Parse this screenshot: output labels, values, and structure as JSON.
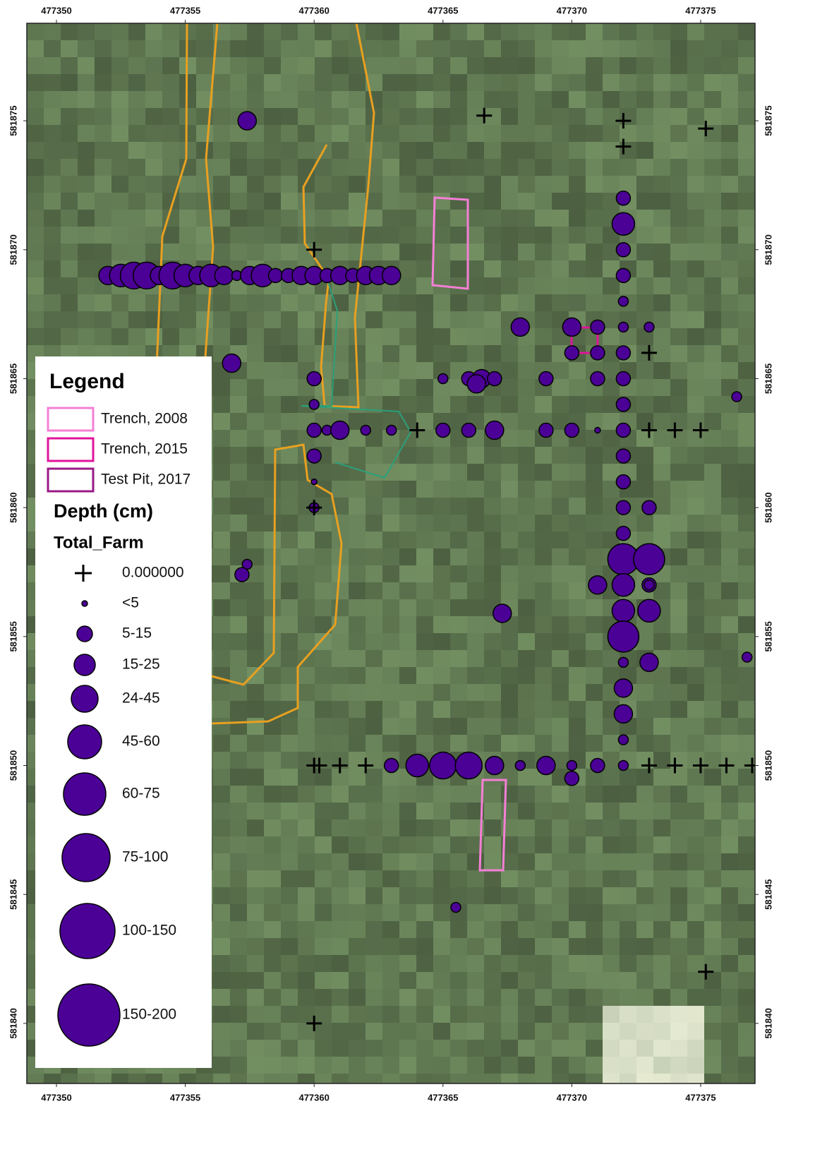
{
  "map": {
    "xlim": [
      477348.85,
      477377.11
    ],
    "ylim": [
      581837.67,
      581878.78
    ],
    "xticks": [
      477350,
      477355,
      477360,
      477365,
      477370,
      477375
    ],
    "yticks": [
      581875,
      581870,
      581865,
      581860,
      581855,
      581850,
      581845,
      581840
    ],
    "legend": {
      "title": "Legend",
      "layers": [
        {
          "label": "Trench, 2008",
          "color": "#f47fd6"
        },
        {
          "label": "Trench, 2015",
          "color": "#e0149a"
        },
        {
          "label": "Test Pit, 2017",
          "color": "#9a1a86"
        }
      ],
      "field_title": "Depth (cm)",
      "field": "Total_Farm",
      "classes": [
        "0.000000",
        "<5",
        "5-15",
        "15-25",
        "24-45",
        "45-60",
        "60-75",
        "75-100",
        "100-150",
        "150-200"
      ]
    },
    "point_color": "#4b0096",
    "points": [
      [
        477357.4,
        581875,
        4
      ],
      [
        477366.6,
        581875.2,
        0
      ],
      [
        477372,
        581875,
        0
      ],
      [
        477372,
        581874,
        0
      ],
      [
        477375.2,
        581874.7,
        0
      ],
      [
        477360,
        581870,
        0
      ],
      [
        477352,
        581869,
        4
      ],
      [
        477352.5,
        581869,
        5
      ],
      [
        477353,
        581869,
        6
      ],
      [
        477353.5,
        581869,
        6
      ],
      [
        477354,
        581869,
        4
      ],
      [
        477354.5,
        581869,
        6
      ],
      [
        477355,
        581869,
        5
      ],
      [
        477355.5,
        581869,
        4
      ],
      [
        477356,
        581869,
        5
      ],
      [
        477356.5,
        581869,
        4
      ],
      [
        477357,
        581869,
        2
      ],
      [
        477357.5,
        581869,
        4
      ],
      [
        477358,
        581869,
        5
      ],
      [
        477358.5,
        581869,
        3
      ],
      [
        477359,
        581869,
        3
      ],
      [
        477359.5,
        581869,
        4
      ],
      [
        477359.9,
        581869,
        1
      ],
      [
        477360,
        581869,
        4
      ],
      [
        477360.5,
        581869,
        3
      ],
      [
        477361,
        581869,
        4
      ],
      [
        477361.5,
        581869,
        3
      ],
      [
        477362,
        581869,
        4
      ],
      [
        477362.5,
        581869,
        4
      ],
      [
        477363,
        581869,
        4
      ],
      [
        477372,
        581872,
        3
      ],
      [
        477372,
        581871,
        5
      ],
      [
        477372,
        581870,
        3
      ],
      [
        477372,
        581869,
        3
      ],
      [
        477372,
        581868,
        2
      ],
      [
        477372,
        581867,
        2
      ],
      [
        477372,
        581866,
        3
      ],
      [
        477372,
        581865,
        3
      ],
      [
        477372,
        581864,
        3
      ],
      [
        477372,
        581863,
        3
      ],
      [
        477372,
        581862,
        3
      ],
      [
        477372,
        581861,
        3
      ],
      [
        477372,
        581860,
        3
      ],
      [
        477372,
        581859,
        3
      ],
      [
        477372,
        581858,
        7
      ],
      [
        477372,
        581857,
        5
      ],
      [
        477372,
        581856,
        5
      ],
      [
        477372,
        581855,
        7
      ],
      [
        477372,
        581854,
        2
      ],
      [
        477372,
        581853,
        4
      ],
      [
        477372,
        581852,
        4
      ],
      [
        477372,
        581851,
        2
      ],
      [
        477372,
        581850,
        2
      ],
      [
        477373,
        581867,
        2
      ],
      [
        477373,
        581866,
        0
      ],
      [
        477373,
        581860,
        3
      ],
      [
        477373,
        581858,
        7
      ],
      [
        477373,
        581857,
        3
      ],
      [
        477373,
        581857,
        2
      ],
      [
        477373,
        581856,
        5
      ],
      [
        477373,
        581854,
        4
      ],
      [
        477371,
        581857,
        4
      ],
      [
        477368,
        581867,
        4
      ],
      [
        477370,
        581867,
        4
      ],
      [
        477371,
        581867,
        3
      ],
      [
        477370,
        581866,
        3
      ],
      [
        477371,
        581866,
        3
      ],
      [
        477371,
        581865,
        3
      ],
      [
        477369,
        581865,
        3
      ],
      [
        477365,
        581865,
        2
      ],
      [
        477366,
        581865,
        3
      ],
      [
        477366.5,
        581865,
        4
      ],
      [
        477366.3,
        581864.8,
        4
      ],
      [
        477367,
        581865,
        3
      ],
      [
        477356.8,
        581865.6,
        4
      ],
      [
        477360,
        581865,
        3
      ],
      [
        477360,
        581864,
        2
      ],
      [
        477360,
        581863,
        3
      ],
      [
        477360.5,
        581863,
        2
      ],
      [
        477361,
        581863,
        4
      ],
      [
        477362,
        581863,
        2
      ],
      [
        477363,
        581863,
        2
      ],
      [
        477364,
        581863,
        0
      ],
      [
        477365,
        581863,
        3
      ],
      [
        477366,
        581863,
        3
      ],
      [
        477367,
        581863,
        4
      ],
      [
        477369,
        581863,
        3
      ],
      [
        477370,
        581863,
        3
      ],
      [
        477371,
        581863,
        1
      ],
      [
        477373,
        581863,
        0
      ],
      [
        477374,
        581863,
        0
      ],
      [
        477375,
        581863,
        0
      ],
      [
        477360,
        581862,
        3
      ],
      [
        477360,
        581861,
        1
      ],
      [
        477360,
        581860,
        2
      ],
      [
        477360,
        581860,
        0
      ],
      [
        477357.4,
        581857.8,
        2
      ],
      [
        477357.2,
        581857.4,
        3
      ],
      [
        477367.3,
        581855.9,
        4
      ],
      [
        477376.4,
        581864.3,
        2
      ],
      [
        477376.8,
        581854.2,
        2
      ],
      [
        477360,
        581850,
        0
      ],
      [
        477360.2,
        581850,
        0
      ],
      [
        477361,
        581850,
        0
      ],
      [
        477362,
        581850,
        0
      ],
      [
        477363,
        581850,
        3
      ],
      [
        477364,
        581850,
        5
      ],
      [
        477365,
        581850,
        6
      ],
      [
        477366,
        581850,
        6
      ],
      [
        477367,
        581850,
        4
      ],
      [
        477368,
        581850,
        2
      ],
      [
        477369,
        581850,
        4
      ],
      [
        477370,
        581850,
        2
      ],
      [
        477370,
        581849.5,
        3
      ],
      [
        477371,
        581850,
        3
      ],
      [
        477373,
        581850,
        0
      ],
      [
        477374,
        581850,
        0
      ],
      [
        477375,
        581850,
        0
      ],
      [
        477376,
        581850,
        0
      ],
      [
        477377,
        581850,
        0
      ],
      [
        477365.5,
        581844.5,
        2
      ],
      [
        477375.2,
        581842,
        0
      ],
      [
        477360,
        581840,
        0
      ]
    ]
  }
}
